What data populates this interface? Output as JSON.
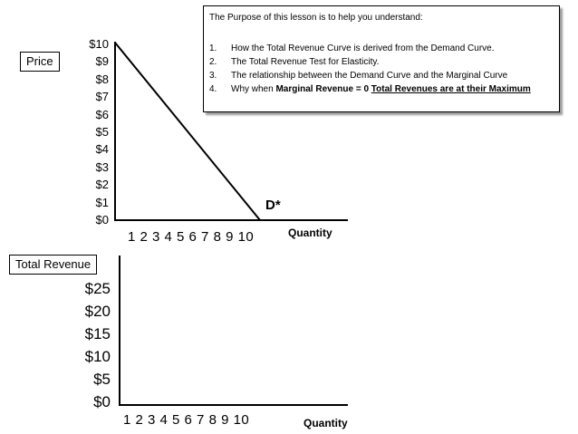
{
  "purpose": {
    "title": "The Purpose of this lesson is to help you understand:",
    "items": [
      {
        "num": "1.",
        "text": "How the Total Revenue Curve is derived from the Demand Curve."
      },
      {
        "num": "2.",
        "text": "The Total Revenue Test for Elasticity."
      },
      {
        "num": "3.",
        "text": "The relationship between the Demand Curve and the Marginal  Curve"
      },
      {
        "num": "4.",
        "prefix": "Why when ",
        "bold": "Marginal Revenue = 0 ",
        "underline": "Total Revenues are at their Maximum"
      }
    ]
  },
  "top_chart": {
    "ylabel": "Price",
    "xlabel": "Quantity",
    "y_ticks": [
      "$10",
      "$9",
      "$8",
      "$7",
      "$6",
      "$5",
      "$4",
      "$3",
      "$2",
      "$1",
      "$0"
    ],
    "x_ticks": "1 2 3 4 5 6 7 8 9 10",
    "curve_label": "D*",
    "demand_line": {
      "from": {
        "quantity": 0,
        "price": 10
      },
      "to": {
        "quantity": 10,
        "price": 0
      }
    }
  },
  "bottom_chart": {
    "ylabel": "Total Revenue",
    "xlabel": "Quantity",
    "y_ticks": [
      "$25",
      "$20",
      "$15",
      "$10",
      "$5",
      "$0"
    ],
    "x_ticks": "1 2 3 4 5 6 7 8 9 10"
  }
}
